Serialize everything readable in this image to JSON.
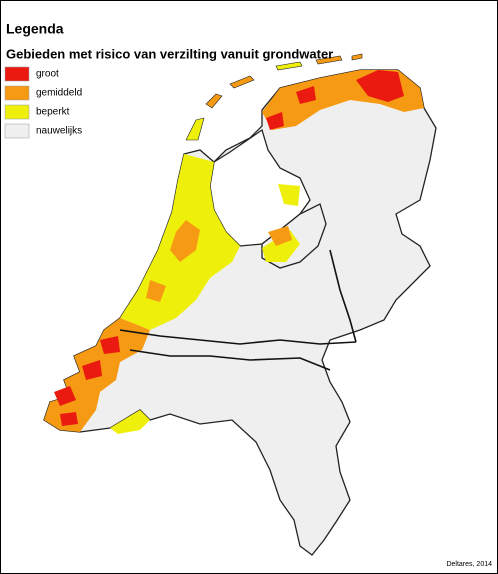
{
  "legend": {
    "heading": "Legenda",
    "title": "Gebieden met risico van verzilting vanuit grondwater",
    "items": [
      {
        "label": "groot",
        "color": "#ea1a10"
      },
      {
        "label": "gemiddeld",
        "color": "#f59a12"
      },
      {
        "label": "beperkt",
        "color": "#eef00c"
      },
      {
        "label": "nauwelijks",
        "color": "#f0f0f0"
      }
    ]
  },
  "credit": "Deltares, 2014"
}
